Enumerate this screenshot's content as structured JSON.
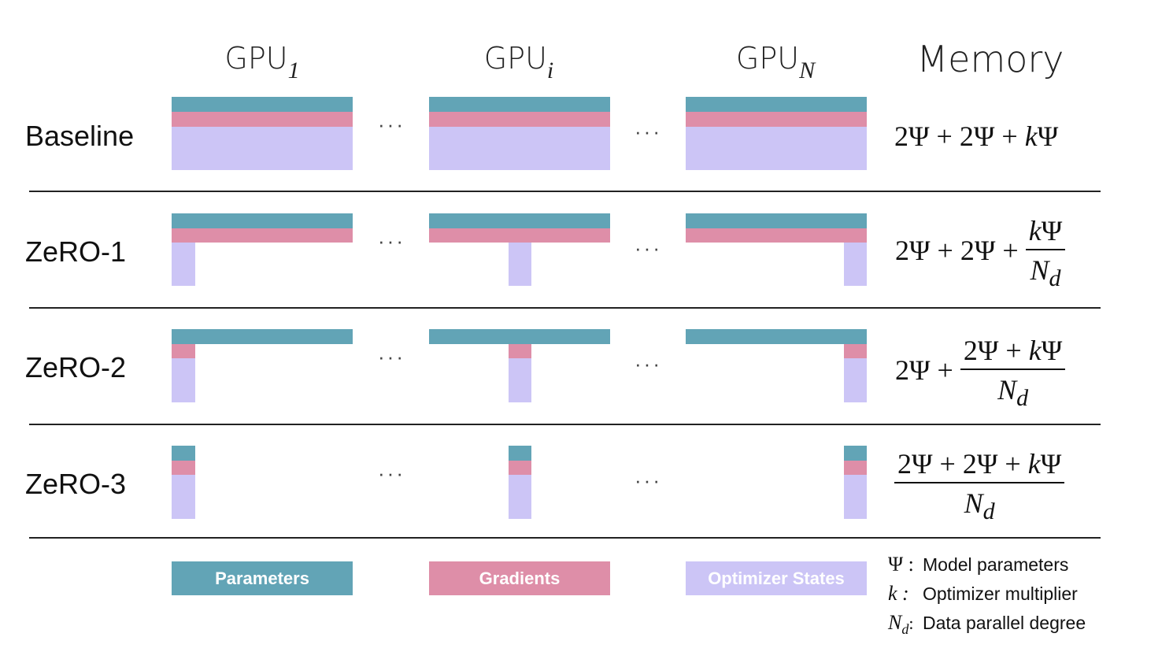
{
  "columns": {
    "gpu1": {
      "base": "GPU",
      "sub": "1"
    },
    "gpui": {
      "base": "GPU",
      "sub": "i"
    },
    "gpun": {
      "base": "GPU",
      "sub": "N"
    },
    "memory": "Memory"
  },
  "rows": [
    {
      "label": "Baseline"
    },
    {
      "label": "ZeRO-1"
    },
    {
      "label": "ZeRO-2"
    },
    {
      "label": "ZeRO-3"
    }
  ],
  "ellipsis": "···",
  "formulas": {
    "baseline": {
      "a": "2Ψ + 2Ψ + ",
      "k": "k",
      "psi": "Ψ"
    },
    "zero1": {
      "prefix": "2Ψ + 2Ψ + ",
      "num_k": "k",
      "num_psi": "Ψ",
      "den_n": "N",
      "den_d": "d"
    },
    "zero2": {
      "prefix": "2Ψ + ",
      "num_a": "2Ψ + ",
      "num_k": "k",
      "num_psi": "Ψ",
      "den_n": "N",
      "den_d": "d"
    },
    "zero3": {
      "num_a": "2Ψ + 2Ψ + ",
      "num_k": "k",
      "num_psi": "Ψ",
      "den_n": "N",
      "den_d": "d"
    }
  },
  "legend": {
    "parameters": "Parameters",
    "gradients": "Gradients",
    "optimizer_states": "Optimizer States"
  },
  "key": [
    {
      "symbol": "Ψ :",
      "text": "Model parameters"
    },
    {
      "symbol": "k :",
      "text": "Optimizer multiplier"
    },
    {
      "symbol_n": "N",
      "symbol_d": "d",
      "symbol_colon": ":",
      "text": "Data parallel degree"
    }
  ],
  "colors": {
    "parameters": "#62a4b6",
    "gradients": "#de8ea8",
    "optimizer_states": "#ccc5f6"
  }
}
